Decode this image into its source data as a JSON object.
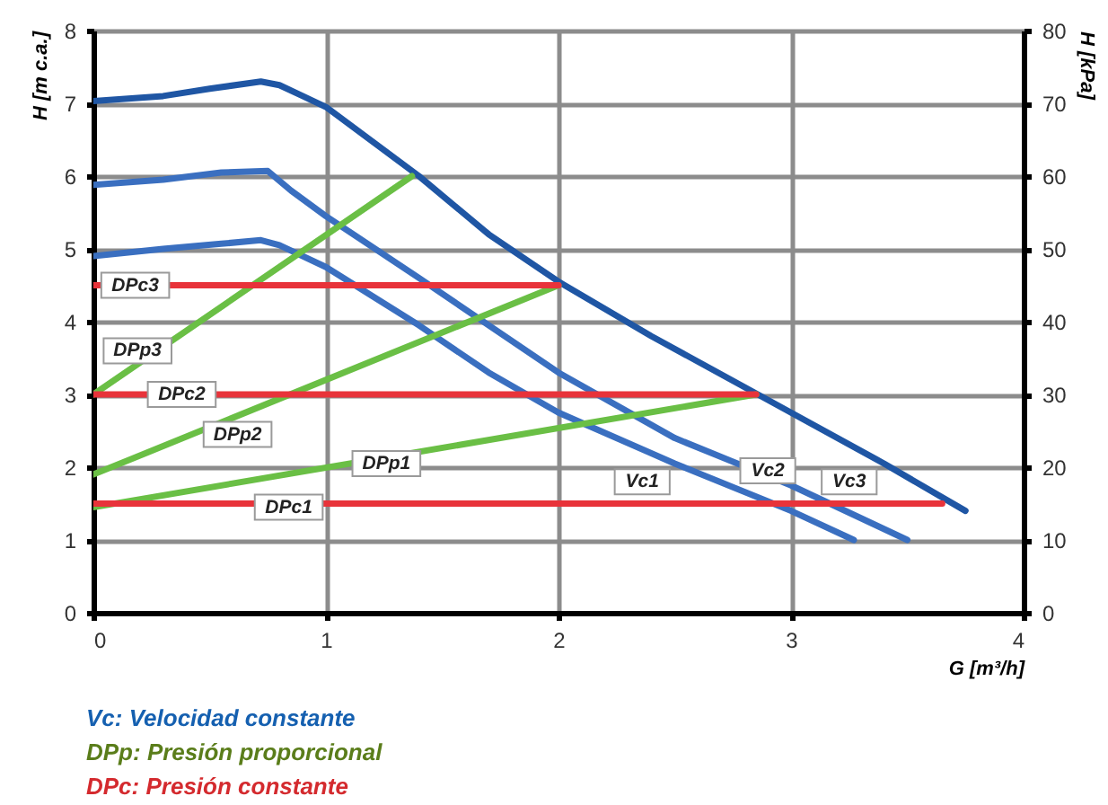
{
  "chart_data": {
    "type": "line",
    "xlabel": "G [m³/h]",
    "ylabel": "H [m c.a.]",
    "y2label": "H [kPa]",
    "xlim": [
      0,
      4
    ],
    "xticks": [
      0,
      1,
      2,
      3,
      4
    ],
    "ylim": [
      0,
      8
    ],
    "yticks": [
      0,
      1,
      2,
      3,
      4,
      5,
      6,
      7,
      8
    ],
    "y2lim": [
      0,
      80
    ],
    "y2ticks": [
      0,
      10,
      20,
      30,
      40,
      50,
      60,
      70,
      80
    ],
    "grid": true,
    "series": [
      {
        "color": "#3a6fc0",
        "x": [
          0,
          0.3,
          0.55,
          0.72,
          0.8,
          1.0,
          1.4,
          1.7,
          2.0,
          2.5,
          3.0,
          3.27
        ],
        "values": [
          4.9,
          5.0,
          5.07,
          5.12,
          5.05,
          4.75,
          3.95,
          3.3,
          2.75,
          2.05,
          1.4,
          1.0
        ]
      },
      {
        "color": "#3a6fc0",
        "x": [
          0,
          0.3,
          0.55,
          0.75,
          0.85,
          1.0,
          1.4,
          2.0,
          2.5,
          3.0,
          3.5
        ],
        "values": [
          5.88,
          5.95,
          6.05,
          6.07,
          5.8,
          5.45,
          4.6,
          3.3,
          2.4,
          1.75,
          1.0
        ]
      },
      {
        "color": "#1f56a4",
        "x": [
          0,
          0.3,
          0.5,
          0.72,
          0.8,
          0.9,
          1.0,
          1.4,
          1.7,
          2.0,
          2.4,
          3.0,
          3.4,
          3.75
        ],
        "values": [
          7.03,
          7.1,
          7.2,
          7.3,
          7.25,
          7.1,
          6.95,
          6.0,
          5.2,
          4.55,
          3.8,
          2.75,
          2.05,
          1.4
        ]
      },
      {
        "color": "#6abf45",
        "x": [
          0,
          2.85
        ],
        "values": [
          1.45,
          3.0
        ]
      },
      {
        "color": "#6abf45",
        "x": [
          0,
          2.0
        ],
        "values": [
          1.9,
          4.5
        ]
      },
      {
        "color": "#6abf45",
        "x": [
          0,
          1.37
        ],
        "values": [
          3.0,
          6.0
        ]
      },
      {
        "color": "#e8333a",
        "x": [
          0,
          3.65
        ],
        "values": [
          1.5,
          1.5
        ]
      },
      {
        "color": "#e8333a",
        "x": [
          0,
          2.85
        ],
        "values": [
          3.0,
          3.0
        ]
      },
      {
        "color": "#e8333a",
        "x": [
          0,
          2.0
        ],
        "values": [
          4.5,
          4.5
        ]
      }
    ],
    "annotations": [
      {
        "text": "Vc1",
        "x": 2.36,
        "y": 1.8
      },
      {
        "text": "Vc2",
        "x": 2.9,
        "y": 1.95
      },
      {
        "text": "Vc3",
        "x": 3.25,
        "y": 1.8
      },
      {
        "text": "DPp1",
        "x": 1.26,
        "y": 2.05
      },
      {
        "text": "DPp2",
        "x": 0.62,
        "y": 2.45
      },
      {
        "text": "DPp3",
        "x": 0.19,
        "y": 3.6
      },
      {
        "text": "DPc1",
        "x": 0.84,
        "y": 1.45
      },
      {
        "text": "DPc2",
        "x": 0.38,
        "y": 3.0
      },
      {
        "text": "DPc3",
        "x": 0.18,
        "y": 4.5
      },
      "Vc:      Velocidad constante",
      "DPp:  Presión proporcional",
      "DPc:  Presión constante"
    ]
  }
}
